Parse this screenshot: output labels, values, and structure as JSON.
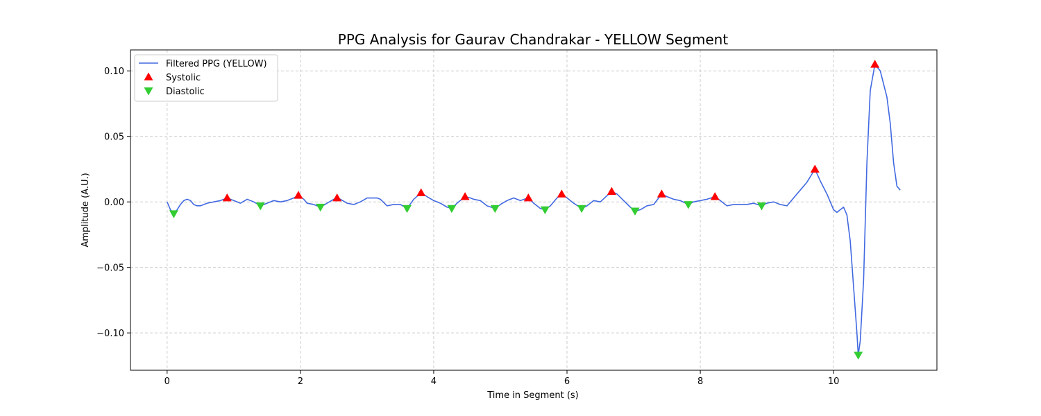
{
  "chart_data": {
    "type": "line",
    "title": "PPG Analysis for Gaurav Chandrakar - YELLOW Segment",
    "xlabel": "Time in Segment (s)",
    "ylabel": "Amplitude (A.U.)",
    "xlim": [
      -0.55,
      11.55
    ],
    "ylim": [
      -0.1285,
      0.116
    ],
    "xticks": [
      0,
      2,
      4,
      6,
      8,
      10
    ],
    "xtick_labels": [
      "0",
      "2",
      "4",
      "6",
      "8",
      "10"
    ],
    "yticks": [
      -0.1,
      -0.05,
      0.0,
      0.05,
      0.1
    ],
    "ytick_labels": [
      "−0.10",
      "−0.05",
      "0.00",
      "0.05",
      "0.10"
    ],
    "grid": true,
    "legend": "top-left",
    "series": [
      {
        "name": "Filtered PPG (YELLOW)",
        "color": "#4169e1",
        "x": [
          0,
          0.05,
          0.1,
          0.15,
          0.2,
          0.25,
          0.3,
          0.35,
          0.4,
          0.45,
          0.5,
          0.6,
          0.7,
          0.8,
          0.9,
          1.0,
          1.1,
          1.2,
          1.3,
          1.4,
          1.5,
          1.6,
          1.7,
          1.8,
          1.9,
          1.97,
          2.05,
          2.1,
          2.2,
          2.3,
          2.4,
          2.5,
          2.55,
          2.6,
          2.7,
          2.8,
          2.9,
          3.0,
          3.1,
          3.15,
          3.2,
          3.3,
          3.4,
          3.5,
          3.6,
          3.7,
          3.81,
          3.9,
          4.0,
          4.1,
          4.2,
          4.27,
          4.35,
          4.47,
          4.55,
          4.6,
          4.7,
          4.8,
          4.92,
          5.0,
          5.1,
          5.2,
          5.3,
          5.42,
          5.5,
          5.6,
          5.67,
          5.75,
          5.85,
          5.92,
          6.0,
          6.1,
          6.22,
          6.3,
          6.4,
          6.5,
          6.67,
          6.75,
          6.85,
          6.95,
          7.02,
          7.1,
          7.2,
          7.3,
          7.42,
          7.5,
          7.6,
          7.7,
          7.82,
          7.9,
          8.0,
          8.1,
          8.22,
          8.3,
          8.4,
          8.5,
          8.6,
          8.7,
          8.8,
          8.92,
          9.0,
          9.1,
          9.2,
          9.3,
          9.4,
          9.5,
          9.6,
          9.72,
          9.8,
          9.9,
          10.0,
          10.05,
          10.1,
          10.15,
          10.2,
          10.25,
          10.3,
          10.35,
          10.37,
          10.4,
          10.45,
          10.5,
          10.55,
          10.62,
          10.7,
          10.75,
          10.8,
          10.85,
          10.9,
          10.95,
          11.0
        ],
        "values": [
          0.0,
          -0.006,
          -0.009,
          -0.006,
          -0.002,
          0.001,
          0.002,
          0.001,
          -0.002,
          -0.003,
          -0.003,
          -0.001,
          0.0,
          0.001,
          0.003,
          0.001,
          -0.001,
          0.002,
          0.0,
          -0.003,
          -0.001,
          0.001,
          0.0,
          0.001,
          0.003,
          0.005,
          0.002,
          -0.001,
          -0.002,
          -0.004,
          -0.001,
          0.002,
          0.003,
          0.002,
          -0.001,
          -0.002,
          0.0,
          0.003,
          0.003,
          0.003,
          0.002,
          -0.003,
          -0.002,
          -0.002,
          -0.005,
          0.002,
          0.007,
          0.004,
          0.001,
          -0.001,
          -0.004,
          -0.005,
          -0.001,
          0.004,
          0.003,
          0.002,
          0.001,
          -0.003,
          -0.005,
          -0.002,
          0.001,
          0.003,
          0.001,
          0.003,
          -0.001,
          -0.005,
          -0.006,
          -0.003,
          0.003,
          0.006,
          0.003,
          -0.001,
          -0.005,
          -0.003,
          0.001,
          0.0,
          0.008,
          0.006,
          0.001,
          -0.004,
          -0.007,
          -0.006,
          -0.003,
          -0.002,
          0.006,
          0.004,
          0.002,
          0.001,
          -0.002,
          0.0,
          0.001,
          0.002,
          0.004,
          0.001,
          -0.003,
          -0.002,
          -0.002,
          -0.002,
          -0.001,
          -0.003,
          -0.001,
          0.0,
          -0.002,
          -0.003,
          0.003,
          0.009,
          0.015,
          0.025,
          0.016,
          0.006,
          -0.006,
          -0.008,
          -0.006,
          -0.004,
          -0.01,
          -0.03,
          -0.065,
          -0.1,
          -0.117,
          -0.106,
          -0.06,
          0.03,
          0.085,
          0.105,
          0.1,
          0.09,
          0.08,
          0.06,
          0.03,
          0.012,
          0.009
        ]
      },
      {
        "name": "Systolic",
        "color": "#ff0000",
        "marker": "triangle-up",
        "x": [
          0.9,
          1.97,
          2.55,
          3.81,
          4.47,
          5.42,
          5.92,
          6.67,
          7.42,
          8.22,
          9.72,
          10.62
        ],
        "values": [
          0.003,
          0.005,
          0.003,
          0.007,
          0.004,
          0.003,
          0.006,
          0.008,
          0.006,
          0.004,
          0.025,
          0.105
        ]
      },
      {
        "name": "Diastolic",
        "color": "#32cd32",
        "marker": "triangle-down",
        "x": [
          0.1,
          1.4,
          2.3,
          3.6,
          4.27,
          4.92,
          5.67,
          6.22,
          7.02,
          7.82,
          8.92,
          10.37
        ],
        "values": [
          -0.009,
          -0.003,
          -0.004,
          -0.005,
          -0.005,
          -0.005,
          -0.006,
          -0.005,
          -0.007,
          -0.002,
          -0.003,
          -0.117
        ]
      }
    ]
  }
}
